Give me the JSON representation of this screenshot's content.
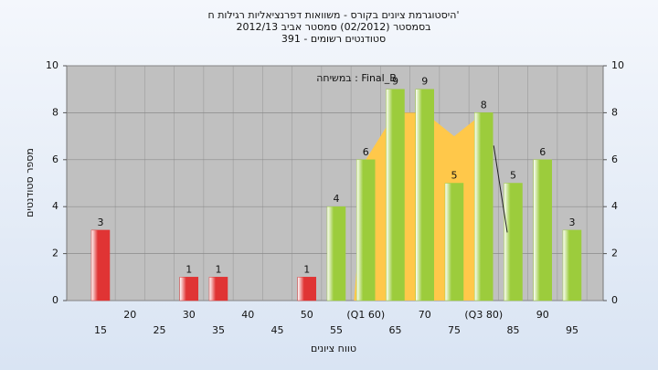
{
  "chart_data": {
    "type": "bar",
    "title_lines": [
      "היסטוגרמת ציונים בקורס - משוואות דפרנציאליות רגילות ח'",
      "בסמסטר  (02/2012)  סמסטר אביב 2012/13",
      "391 - סטודנטים רשומים"
    ],
    "subtitle": "במשיחה : Final_B",
    "x_label": "טווח ציונים",
    "y_label": "מספר סטודנטים",
    "categories": [
      "15",
      "20",
      "25",
      "30",
      "35",
      "40",
      "45",
      "50",
      "55",
      "(Q1 60)",
      "65",
      "70",
      "75",
      "(Q3 80)",
      "85",
      "90",
      "95"
    ],
    "values": [
      3,
      0,
      0,
      1,
      1,
      0,
      0,
      1,
      4,
      6,
      9,
      9,
      5,
      8,
      5,
      6,
      3
    ],
    "colors": [
      "#e03434",
      "#e03434",
      "#e03434",
      "#e03434",
      "#e03434",
      "#e03434",
      "#e03434",
      "#e03434",
      "#9ccc3c",
      "#9ccc3c",
      "#9ccc3c",
      "#9ccc3c",
      "#9ccc3c",
      "#9ccc3c",
      "#9ccc3c",
      "#9ccc3c",
      "#9ccc3c"
    ],
    "area": {
      "x": [
        58,
        60,
        65,
        70,
        75,
        80
      ],
      "values": [
        0,
        6,
        8,
        8,
        7,
        8
      ],
      "color": "#ffc84a"
    },
    "line": {
      "x": [
        81.7,
        84
      ],
      "values": [
        6.6,
        2.9
      ],
      "color": "#222222"
    },
    "ylim": [
      0,
      10
    ],
    "yticks": [
      0,
      2,
      4,
      6,
      8,
      10
    ],
    "grid": true
  }
}
